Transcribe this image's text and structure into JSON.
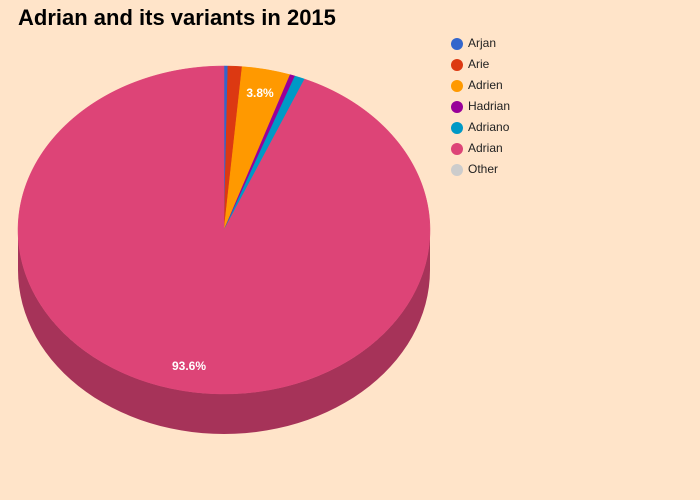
{
  "chart_data": {
    "type": "pie",
    "title": "Adrian and its variants in 2015",
    "categories": [
      "Arjan",
      "Arie",
      "Adrien",
      "Hadrian",
      "Adriano",
      "Adrian",
      "Other"
    ],
    "values": [
      0.3,
      1.1,
      3.8,
      0.4,
      0.8,
      93.6,
      0
    ],
    "value_labels": [
      null,
      null,
      "3.8%",
      null,
      null,
      "93.6%",
      null
    ],
    "colors": [
      "#3366cc",
      "#dc3912",
      "#ff9900",
      "#990099",
      "#0099c6",
      "#dd4477",
      "#cccccc"
    ],
    "legend": "right"
  }
}
